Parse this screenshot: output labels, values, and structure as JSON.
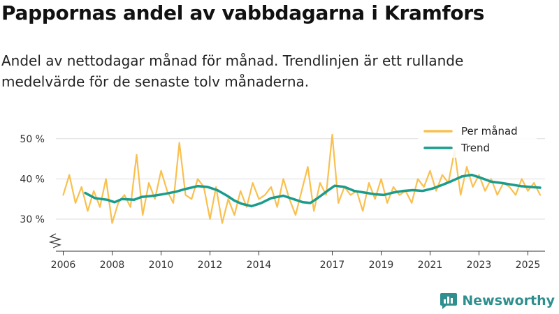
{
  "header": {
    "title": "Pappornas andel av vabbdagarna i Kramfors",
    "subtitle": "Andel av nettodagar månad för månad. Trendlinjen är ett rullande medelvärde för de senaste tolv månaderna."
  },
  "brand": {
    "name": "Newsworthy"
  },
  "colors": {
    "monthly": "#f9c04f",
    "trend": "#1a9c8c",
    "grid": "#dddddd",
    "axis": "#333333",
    "brand": "#2f8f8f"
  },
  "chart_data": {
    "type": "line",
    "title": "Pappornas andel av vabbdagarna i Kramfors",
    "xlabel": "",
    "ylabel": "",
    "ylim": [
      22,
      55
    ],
    "xlim": [
      2005.7,
      2025.7
    ],
    "y_ticks": [
      30,
      40,
      50
    ],
    "y_tick_labels": [
      "30 %",
      "40 %",
      "50 %"
    ],
    "x_ticks": [
      2006,
      2008,
      2010,
      2012,
      2014,
      2017,
      2019,
      2021,
      2023,
      2025
    ],
    "x_tick_labels": [
      "2006",
      "2008",
      "2010",
      "2012",
      "2014",
      "2017",
      "2019",
      "2021",
      "2023",
      "2025"
    ],
    "y_axis_broken": true,
    "legend": {
      "position": "top-right",
      "entries": [
        "Per månad",
        "Trend"
      ]
    },
    "series": [
      {
        "name": "Per månad",
        "x": [
          2006.0,
          2006.25,
          2006.5,
          2006.75,
          2007.0,
          2007.25,
          2007.5,
          2007.75,
          2008.0,
          2008.25,
          2008.5,
          2008.75,
          2009.0,
          2009.25,
          2009.5,
          2009.75,
          2010.0,
          2010.25,
          2010.5,
          2010.75,
          2011.0,
          2011.25,
          2011.5,
          2011.75,
          2012.0,
          2012.25,
          2012.5,
          2012.75,
          2013.0,
          2013.25,
          2013.5,
          2013.75,
          2014.0,
          2014.25,
          2014.5,
          2014.75,
          2015.0,
          2015.25,
          2015.5,
          2015.75,
          2016.0,
          2016.25,
          2016.5,
          2016.75,
          2017.0,
          2017.25,
          2017.5,
          2017.75,
          2018.0,
          2018.25,
          2018.5,
          2018.75,
          2019.0,
          2019.25,
          2019.5,
          2019.75,
          2020.0,
          2020.25,
          2020.5,
          2020.75,
          2021.0,
          2021.25,
          2021.5,
          2021.75,
          2022.0,
          2022.25,
          2022.5,
          2022.75,
          2023.0,
          2023.25,
          2023.5,
          2023.75,
          2024.0,
          2024.25,
          2024.5,
          2024.75,
          2025.0,
          2025.25,
          2025.5
        ],
        "values": [
          36,
          41,
          34,
          38,
          32,
          37,
          33,
          40,
          29,
          34,
          36,
          33,
          46,
          31,
          39,
          35,
          42,
          37,
          34,
          49,
          36,
          35,
          40,
          38,
          30,
          38,
          29,
          35,
          31,
          37,
          33,
          39,
          35,
          36,
          38,
          33,
          40,
          35,
          31,
          37,
          43,
          32,
          39,
          36,
          51,
          34,
          38,
          36,
          37,
          32,
          39,
          35,
          40,
          34,
          38,
          36,
          37,
          34,
          40,
          38,
          42,
          37,
          41,
          39,
          47,
          36,
          43,
          38,
          41,
          37,
          40,
          36,
          39,
          38,
          36,
          40,
          37,
          39,
          36
        ]
      },
      {
        "name": "Trend",
        "x": [
          2006.9,
          2007.3,
          2007.8,
          2008.1,
          2008.4,
          2008.9,
          2009.2,
          2009.7,
          2010.1,
          2010.6,
          2011.0,
          2011.5,
          2011.9,
          2012.3,
          2012.7,
          2013.0,
          2013.3,
          2013.7,
          2014.1,
          2014.5,
          2015.0,
          2015.4,
          2015.8,
          2016.1,
          2016.4,
          2016.8,
          2017.1,
          2017.5,
          2017.9,
          2018.3,
          2018.7,
          2019.1,
          2019.5,
          2019.9,
          2020.3,
          2020.7,
          2021.1,
          2021.5,
          2021.9,
          2022.3,
          2022.7,
          2023.1,
          2023.5,
          2023.9,
          2024.3,
          2024.7,
          2025.1,
          2025.5
        ],
        "values": [
          36.5,
          35.2,
          34.8,
          34.2,
          35.0,
          34.8,
          35.5,
          35.8,
          36.2,
          36.8,
          37.5,
          38.2,
          38.0,
          37.2,
          35.8,
          34.6,
          33.8,
          33.2,
          34.0,
          35.2,
          35.8,
          35.0,
          34.2,
          34.0,
          35.2,
          37.0,
          38.3,
          38.0,
          37.0,
          36.6,
          36.2,
          36.0,
          36.6,
          37.0,
          37.2,
          37.0,
          37.6,
          38.5,
          39.5,
          40.6,
          41.0,
          40.2,
          39.3,
          39.0,
          38.6,
          38.2,
          38.0,
          37.8
        ]
      }
    ]
  }
}
